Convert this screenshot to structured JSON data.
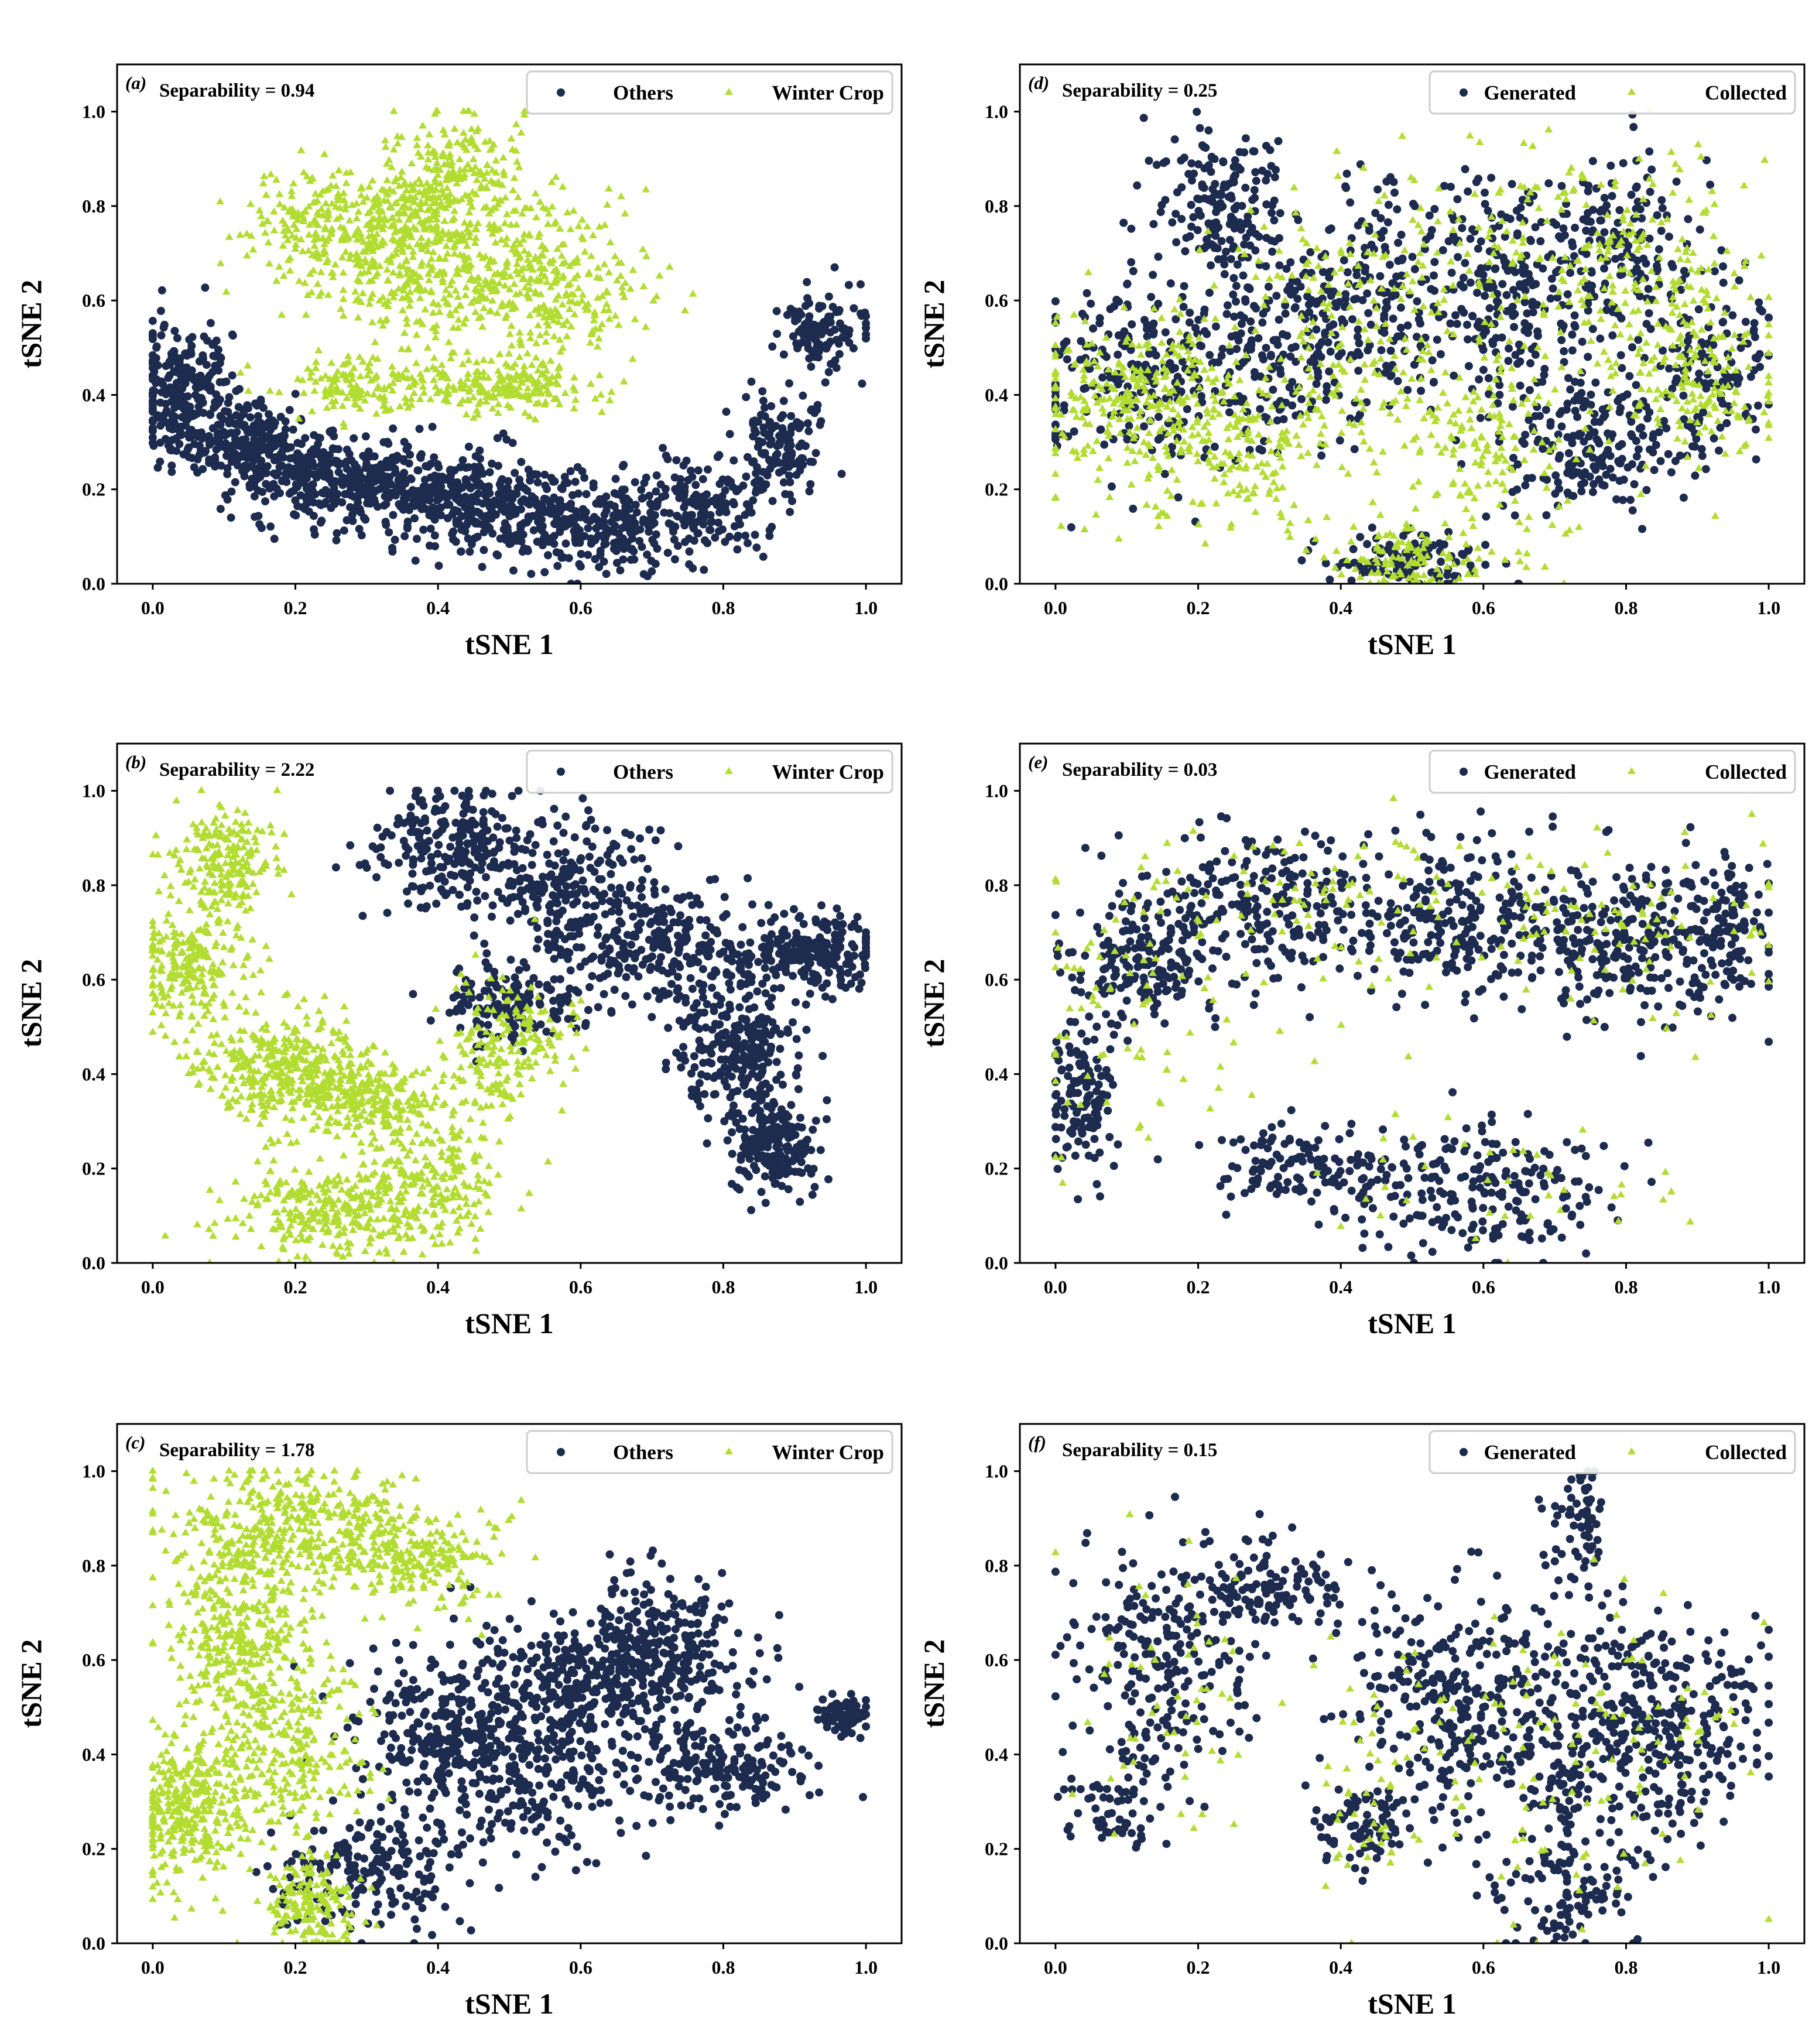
{
  "colors": {
    "others": "#1c2b4e",
    "winter": "#b3dc33",
    "frame": "#000000",
    "legend_border": "#cccccc"
  },
  "chart_data": [
    {
      "type": "scatter",
      "panel": "(a)",
      "annotation": "Separability = 0.94",
      "xlabel": "tSNE 1",
      "ylabel": "tSNE 2",
      "xlim": [
        -0.05,
        1.05
      ],
      "ylim": [
        0,
        1.1
      ],
      "xticks": [
        "0.0",
        "0.2",
        "0.4",
        "0.6",
        "0.8",
        "1.0"
      ],
      "yticks": [
        "0.0",
        "0.2",
        "0.4",
        "0.6",
        "0.8",
        "1.0"
      ],
      "legend_position": "top-right",
      "series": [
        {
          "name": "Others",
          "marker": "circle",
          "color": "#1c2b4e",
          "n": 1800,
          "clusters": [
            [
              0.04,
              0.42,
              0.035,
              0.07,
              0.12
            ],
            [
              0.12,
              0.3,
              0.05,
              0.04,
              0.12
            ],
            [
              0.22,
              0.22,
              0.06,
              0.05,
              0.14
            ],
            [
              0.36,
              0.2,
              0.07,
              0.05,
              0.15
            ],
            [
              0.5,
              0.15,
              0.07,
              0.05,
              0.14
            ],
            [
              0.64,
              0.12,
              0.06,
              0.05,
              0.12
            ],
            [
              0.78,
              0.17,
              0.05,
              0.05,
              0.08
            ],
            [
              0.88,
              0.3,
              0.03,
              0.05,
              0.07
            ],
            [
              0.94,
              0.53,
              0.03,
              0.04,
              0.06
            ]
          ]
        },
        {
          "name": "Winter Crop",
          "marker": "triangle",
          "color": "#b3dc33",
          "n": 1500,
          "clusters": [
            [
              0.28,
              0.76,
              0.07,
              0.06,
              0.22
            ],
            [
              0.42,
              0.82,
              0.05,
              0.09,
              0.22
            ],
            [
              0.55,
              0.64,
              0.07,
              0.08,
              0.2
            ],
            [
              0.3,
              0.42,
              0.07,
              0.03,
              0.12
            ],
            [
              0.5,
              0.42,
              0.06,
              0.03,
              0.12
            ],
            [
              0.38,
              0.62,
              0.08,
              0.05,
              0.12
            ]
          ]
        }
      ]
    },
    {
      "type": "scatter",
      "panel": "(d)",
      "annotation": "Separability = 0.25",
      "xlabel": "tSNE 1",
      "ylabel": "tSNE 2",
      "xlim": [
        -0.05,
        1.05
      ],
      "ylim": [
        0,
        1.1
      ],
      "xticks": [
        "0.0",
        "0.2",
        "0.4",
        "0.6",
        "0.8",
        "1.0"
      ],
      "yticks": [
        "0.0",
        "0.2",
        "0.4",
        "0.6",
        "0.8",
        "1.0"
      ],
      "legend_position": "top-right",
      "series": [
        {
          "name": "Generated",
          "marker": "circle",
          "color": "#1c2b4e",
          "n": 1600,
          "clusters": [
            [
              0.23,
              0.82,
              0.05,
              0.07,
              0.1
            ],
            [
              0.12,
              0.45,
              0.08,
              0.1,
              0.15
            ],
            [
              0.3,
              0.5,
              0.06,
              0.1,
              0.1
            ],
            [
              0.45,
              0.6,
              0.08,
              0.12,
              0.14
            ],
            [
              0.63,
              0.62,
              0.06,
              0.12,
              0.12
            ],
            [
              0.8,
              0.7,
              0.06,
              0.1,
              0.12
            ],
            [
              0.93,
              0.45,
              0.04,
              0.1,
              0.08
            ],
            [
              0.5,
              0.05,
              0.06,
              0.03,
              0.07
            ],
            [
              0.75,
              0.3,
              0.07,
              0.08,
              0.12
            ]
          ]
        },
        {
          "name": "Collected",
          "marker": "triangle",
          "color": "#b3dc33",
          "n": 1300,
          "clusters": [
            [
              0.1,
              0.4,
              0.08,
              0.1,
              0.2
            ],
            [
              0.25,
              0.3,
              0.07,
              0.1,
              0.15
            ],
            [
              0.45,
              0.6,
              0.1,
              0.15,
              0.15
            ],
            [
              0.75,
              0.7,
              0.1,
              0.12,
              0.15
            ],
            [
              0.5,
              0.05,
              0.06,
              0.03,
              0.08
            ],
            [
              0.6,
              0.3,
              0.08,
              0.1,
              0.12
            ],
            [
              0.9,
              0.45,
              0.06,
              0.1,
              0.15
            ]
          ]
        }
      ]
    },
    {
      "type": "scatter",
      "panel": "(b)",
      "annotation": "Separability = 2.22",
      "xlabel": "tSNE 1",
      "ylabel": "tSNE 2",
      "xlim": [
        -0.05,
        1.05
      ],
      "ylim": [
        0,
        1.1
      ],
      "xticks": [
        "0.0",
        "0.2",
        "0.4",
        "0.6",
        "0.8",
        "1.0"
      ],
      "yticks": [
        "0.0",
        "0.2",
        "0.4",
        "0.6",
        "0.8",
        "1.0"
      ],
      "legend_position": "top-right",
      "series": [
        {
          "name": "Others",
          "marker": "circle",
          "color": "#1c2b4e",
          "n": 1500,
          "clusters": [
            [
              0.42,
              0.88,
              0.06,
              0.07,
              0.15
            ],
            [
              0.6,
              0.8,
              0.07,
              0.07,
              0.15
            ],
            [
              0.72,
              0.66,
              0.08,
              0.06,
              0.17
            ],
            [
              0.92,
              0.66,
              0.05,
              0.04,
              0.12
            ],
            [
              0.82,
              0.45,
              0.04,
              0.07,
              0.15
            ],
            [
              0.87,
              0.25,
              0.03,
              0.05,
              0.12
            ],
            [
              0.5,
              0.55,
              0.05,
              0.04,
              0.1
            ]
          ]
        },
        {
          "name": "Winter Crop",
          "marker": "triangle",
          "color": "#b3dc33",
          "n": 1700,
          "clusters": [
            [
              0.1,
              0.85,
              0.04,
              0.06,
              0.12
            ],
            [
              0.05,
              0.62,
              0.04,
              0.06,
              0.14
            ],
            [
              0.18,
              0.42,
              0.06,
              0.06,
              0.2
            ],
            [
              0.3,
              0.35,
              0.06,
              0.04,
              0.14
            ],
            [
              0.25,
              0.1,
              0.07,
              0.05,
              0.16
            ],
            [
              0.38,
              0.18,
              0.05,
              0.07,
              0.12
            ],
            [
              0.5,
              0.45,
              0.05,
              0.07,
              0.12
            ]
          ]
        }
      ]
    },
    {
      "type": "scatter",
      "panel": "(e)",
      "annotation": "Separability = 0.03",
      "xlabel": "tSNE 1",
      "ylabel": "tSNE 2",
      "xlim": [
        -0.05,
        1.05
      ],
      "ylim": [
        0,
        1.1
      ],
      "xticks": [
        "0.0",
        "0.2",
        "0.4",
        "0.6",
        "0.8",
        "1.0"
      ],
      "yticks": [
        "0.0",
        "0.2",
        "0.4",
        "0.6",
        "0.8",
        "1.0"
      ],
      "legend_position": "top-right",
      "series": [
        {
          "name": "Generated",
          "marker": "circle",
          "color": "#1c2b4e",
          "n": 1500,
          "clusters": [
            [
              0.04,
              0.35,
              0.025,
              0.08,
              0.1
            ],
            [
              0.12,
              0.65,
              0.05,
              0.08,
              0.12
            ],
            [
              0.3,
              0.75,
              0.08,
              0.08,
              0.16
            ],
            [
              0.55,
              0.72,
              0.08,
              0.08,
              0.16
            ],
            [
              0.78,
              0.68,
              0.07,
              0.08,
              0.14
            ],
            [
              0.93,
              0.7,
              0.04,
              0.08,
              0.1
            ],
            [
              0.35,
              0.2,
              0.07,
              0.04,
              0.08
            ],
            [
              0.6,
              0.15,
              0.1,
              0.07,
              0.14
            ]
          ]
        },
        {
          "name": "Collected",
          "marker": "triangle",
          "color": "#b3dc33",
          "n": 300,
          "clusters": [
            [
              0.1,
              0.55,
              0.1,
              0.15,
              0.25
            ],
            [
              0.4,
              0.75,
              0.15,
              0.1,
              0.35
            ],
            [
              0.8,
              0.7,
              0.12,
              0.1,
              0.25
            ],
            [
              0.6,
              0.15,
              0.12,
              0.08,
              0.15
            ]
          ]
        }
      ]
    },
    {
      "type": "scatter",
      "panel": "(c)",
      "annotation": "Separability = 1.78",
      "xlabel": "tSNE 1",
      "ylabel": "tSNE 2",
      "xlim": [
        -0.05,
        1.05
      ],
      "ylim": [
        0,
        1.1
      ],
      "xticks": [
        "0.0",
        "0.2",
        "0.4",
        "0.6",
        "0.8",
        "1.0"
      ],
      "yticks": [
        "0.0",
        "0.2",
        "0.4",
        "0.6",
        "0.8",
        "1.0"
      ],
      "legend_position": "top-right",
      "series": [
        {
          "name": "Others",
          "marker": "circle",
          "color": "#1c2b4e",
          "n": 1500,
          "clusters": [
            [
              0.4,
              0.45,
              0.07,
              0.1,
              0.18
            ],
            [
              0.55,
              0.4,
              0.08,
              0.1,
              0.2
            ],
            [
              0.72,
              0.62,
              0.06,
              0.08,
              0.18
            ],
            [
              0.8,
              0.38,
              0.06,
              0.05,
              0.12
            ],
            [
              0.97,
              0.48,
              0.02,
              0.02,
              0.04
            ],
            [
              0.3,
              0.15,
              0.06,
              0.06,
              0.12
            ],
            [
              0.6,
              0.55,
              0.06,
              0.06,
              0.12
            ]
          ]
        },
        {
          "name": "Winter Crop",
          "marker": "triangle",
          "color": "#b3dc33",
          "n": 1700,
          "clusters": [
            [
              0.22,
              0.88,
              0.1,
              0.06,
              0.25
            ],
            [
              0.12,
              0.65,
              0.05,
              0.1,
              0.2
            ],
            [
              0.05,
              0.28,
              0.04,
              0.08,
              0.2
            ],
            [
              0.2,
              0.42,
              0.05,
              0.1,
              0.15
            ],
            [
              0.22,
              0.08,
              0.03,
              0.05,
              0.1
            ],
            [
              0.38,
              0.8,
              0.05,
              0.05,
              0.1
            ]
          ]
        }
      ]
    },
    {
      "type": "scatter",
      "panel": "(f)",
      "annotation": "Separability = 0.15",
      "xlabel": "tSNE 1",
      "ylabel": "tSNE 2",
      "xlim": [
        -0.05,
        1.05
      ],
      "ylim": [
        0,
        1.1
      ],
      "xticks": [
        "0.0",
        "0.2",
        "0.4",
        "0.6",
        "0.8",
        "1.0"
      ],
      "yticks": [
        "0.0",
        "0.2",
        "0.4",
        "0.6",
        "0.8",
        "1.0"
      ],
      "legend_position": "top-right",
      "series": [
        {
          "name": "Generated",
          "marker": "circle",
          "color": "#1c2b4e",
          "n": 1400,
          "clusters": [
            [
              0.15,
              0.6,
              0.06,
              0.12,
              0.16
            ],
            [
              0.08,
              0.3,
              0.04,
              0.06,
              0.06
            ],
            [
              0.3,
              0.75,
              0.06,
              0.05,
              0.08
            ],
            [
              0.55,
              0.5,
              0.08,
              0.12,
              0.18
            ],
            [
              0.72,
              0.45,
              0.08,
              0.15,
              0.2
            ],
            [
              0.88,
              0.45,
              0.06,
              0.12,
              0.15
            ],
            [
              0.74,
              0.9,
              0.02,
              0.06,
              0.05
            ],
            [
              0.72,
              0.12,
              0.05,
              0.08,
              0.08
            ],
            [
              0.43,
              0.25,
              0.04,
              0.05,
              0.05
            ]
          ]
        },
        {
          "name": "Collected",
          "marker": "triangle",
          "color": "#b3dc33",
          "n": 220,
          "clusters": [
            [
              0.15,
              0.55,
              0.08,
              0.15,
              0.25
            ],
            [
              0.5,
              0.45,
              0.1,
              0.15,
              0.25
            ],
            [
              0.8,
              0.45,
              0.1,
              0.15,
              0.3
            ],
            [
              0.7,
              0.15,
              0.06,
              0.08,
              0.1
            ],
            [
              0.43,
              0.22,
              0.04,
              0.05,
              0.1
            ]
          ]
        }
      ]
    }
  ]
}
